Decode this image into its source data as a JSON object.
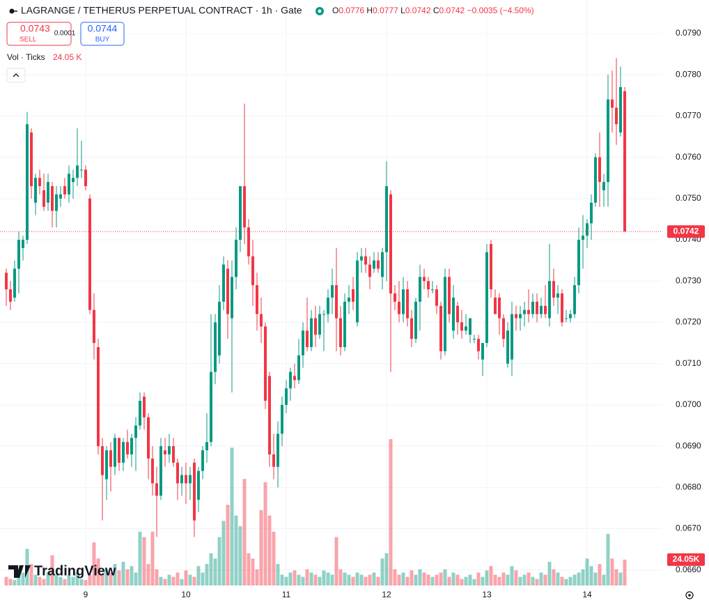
{
  "header": {
    "title": "LAGRANGE / TETHERUS PERPETUAL CONTRACT · 1h · Gate",
    "ohlc_prefixes": [
      "O",
      "H",
      "L",
      "C"
    ],
    "change": "−0.0035 (−4.50%)",
    "sell_price": "0.0743",
    "sell_label": "SELL",
    "spread": "0.0001",
    "buy_price": "0.0744",
    "buy_label": "BUY",
    "volume_indicator": "Vol · Ticks",
    "volume_value": "24.05 K",
    "volume_axis_label": "24.05K",
    "logo": "TradingView"
  },
  "chart_data": {
    "type": "candlestick",
    "up_color": "#089981",
    "down_color": "#f23645",
    "grid": true,
    "categories": [
      null,
      null,
      null,
      null,
      null,
      null,
      null,
      null,
      null,
      null,
      null,
      null,
      null,
      null,
      null,
      null,
      null,
      null,
      null,
      "9",
      null,
      null,
      null,
      null,
      null,
      null,
      null,
      null,
      null,
      null,
      null,
      null,
      null,
      null,
      null,
      null,
      null,
      null,
      null,
      null,
      null,
      null,
      null,
      "10",
      null,
      null,
      null,
      null,
      null,
      null,
      null,
      null,
      null,
      null,
      null,
      null,
      null,
      null,
      null,
      null,
      null,
      null,
      null,
      null,
      null,
      null,
      null,
      "11",
      null,
      null,
      null,
      null,
      null,
      null,
      null,
      null,
      null,
      null,
      null,
      null,
      null,
      null,
      null,
      null,
      null,
      null,
      null,
      null,
      null,
      null,
      null,
      "12",
      null,
      null,
      null,
      null,
      null,
      null,
      null,
      null,
      null,
      null,
      null,
      null,
      null,
      null,
      null,
      null,
      null,
      null,
      null,
      null,
      null,
      null,
      null,
      "13",
      null,
      null,
      null,
      null,
      null,
      null,
      null,
      null,
      null,
      null,
      null,
      null,
      null,
      null,
      null,
      null,
      null,
      null,
      null,
      null,
      null,
      null,
      null,
      "14",
      null,
      null,
      null,
      null,
      null,
      null,
      null,
      null,
      null
    ],
    "open": [
      0.0732,
      0.0728,
      0.0726,
      0.0733,
      0.0738,
      0.074,
      0.0766,
      0.0749,
      0.0755,
      0.0752,
      0.0749,
      0.0753,
      0.0747,
      0.075,
      0.0753,
      0.0751,
      0.0754,
      0.0755,
      0.0757,
      0.0757,
      0.075,
      0.0723,
      0.0714,
      0.069,
      0.0682,
      0.0689,
      0.0685,
      0.0692,
      0.0686,
      0.0691,
      0.0688,
      0.0692,
      0.0695,
      0.0702,
      0.0697,
      0.0687,
      0.0681,
      0.0678,
      0.0689,
      0.0688,
      0.069,
      0.0686,
      0.0681,
      0.0683,
      0.0681,
      0.0686,
      0.0677,
      0.0684,
      0.0689,
      0.0691,
      0.0708,
      0.0712,
      0.0725,
      0.0733,
      0.0721,
      0.0731,
      0.074,
      0.0753,
      0.0743,
      0.0736,
      0.0729,
      0.0722,
      0.0719,
      0.0707,
      0.0688,
      0.0685,
      0.0693,
      0.07,
      0.0704,
      0.0707,
      0.0706,
      0.0712,
      0.0718,
      0.0714,
      0.0721,
      0.0717,
      0.0722,
      0.0722,
      0.0726,
      0.0729,
      0.0721,
      0.0714,
      0.0725,
      0.0728,
      0.072,
      0.0735,
      0.0736,
      0.0734,
      0.0733,
      0.0735,
      0.0731,
      0.0737,
      0.0751,
      0.0727,
      0.0725,
      0.0722,
      0.0728,
      0.0721,
      0.0716,
      0.0725,
      0.0731,
      0.073,
      0.0728,
      0.0728,
      0.0724,
      0.0713,
      0.0731,
      0.0718,
      0.0724,
      0.072,
      0.0718,
      0.0717,
      0.0716,
      0.0716,
      0.0711,
      0.0715,
      0.0739,
      0.0726,
      0.0726,
      0.0721,
      0.071,
      0.0711,
      0.0722,
      0.0721,
      0.0722,
      0.0723,
      0.0722,
      0.0725,
      0.0722,
      0.0724,
      0.0721,
      0.073,
      0.0726,
      0.0727,
      0.0721,
      0.0721,
      0.0722,
      0.0729,
      0.074,
      0.0741,
      0.0744,
      0.0749,
      0.076,
      0.0752,
      0.0754,
      0.0774,
      0.0772,
      0.0766,
      0.0776
    ],
    "high": [
      0.0733,
      0.073,
      0.0735,
      0.0742,
      0.0741,
      0.0771,
      0.0767,
      0.0756,
      0.0757,
      0.0756,
      0.0756,
      0.0754,
      0.0753,
      0.0753,
      0.0755,
      0.0758,
      0.0757,
      0.0767,
      0.0764,
      0.0758,
      0.0751,
      0.0727,
      0.0716,
      0.0692,
      0.069,
      0.0691,
      0.0693,
      0.0692,
      0.0692,
      0.0694,
      0.0693,
      0.0697,
      0.0703,
      0.0703,
      0.0698,
      0.069,
      0.0685,
      0.0692,
      0.0692,
      0.0693,
      0.0692,
      0.0687,
      0.0685,
      0.0686,
      0.0685,
      0.0687,
      0.0685,
      0.069,
      0.0698,
      0.0722,
      0.0722,
      0.0729,
      0.0736,
      0.0735,
      0.0735,
      0.0743,
      0.0753,
      0.0773,
      0.0745,
      0.074,
      0.0732,
      0.0726,
      0.072,
      0.0708,
      0.0693,
      0.0696,
      0.0702,
      0.0706,
      0.0709,
      0.071,
      0.0716,
      0.072,
      0.0726,
      0.0723,
      0.0724,
      0.0724,
      0.0723,
      0.0728,
      0.0733,
      0.0738,
      0.0724,
      0.0727,
      0.0729,
      0.0731,
      0.0737,
      0.0738,
      0.0738,
      0.0736,
      0.0737,
      0.0737,
      0.0738,
      0.0759,
      0.0752,
      0.0729,
      0.073,
      0.0731,
      0.073,
      0.0723,
      0.0726,
      0.0734,
      0.0733,
      0.0731,
      0.073,
      0.0729,
      0.0725,
      0.0733,
      0.0733,
      0.0729,
      0.0725,
      0.0723,
      0.0722,
      0.0721,
      0.0717,
      0.0717,
      0.0715,
      0.0739,
      0.074,
      0.0728,
      0.0727,
      0.0722,
      0.072,
      0.0725,
      0.0724,
      0.0724,
      0.0725,
      0.0728,
      0.0727,
      0.0727,
      0.0726,
      0.0729,
      0.0739,
      0.0733,
      0.0729,
      0.0728,
      0.0723,
      0.0723,
      0.0731,
      0.0743,
      0.0746,
      0.0745,
      0.0751,
      0.0761,
      0.0766,
      0.0756,
      0.078,
      0.0781,
      0.0784,
      0.0782,
      0.0777
    ],
    "low": [
      0.0724,
      0.0723,
      0.0725,
      0.0727,
      0.0735,
      0.0739,
      0.075,
      0.0746,
      0.0751,
      0.0747,
      0.0747,
      0.0743,
      0.0743,
      0.0748,
      0.075,
      0.0749,
      0.075,
      0.0753,
      0.0755,
      0.0752,
      0.0722,
      0.0711,
      0.0688,
      0.0672,
      0.0677,
      0.0679,
      0.0683,
      0.0684,
      0.0684,
      0.0687,
      0.0685,
      0.0684,
      0.0694,
      0.0694,
      0.0682,
      0.0678,
      0.0668,
      0.0677,
      0.0685,
      0.0686,
      0.0685,
      0.0677,
      0.0678,
      0.0676,
      0.0677,
      0.0668,
      0.0674,
      0.0682,
      0.0686,
      0.069,
      0.0705,
      0.071,
      0.0723,
      0.0716,
      0.0703,
      0.0728,
      0.0737,
      0.0739,
      0.0734,
      0.0724,
      0.0718,
      0.0715,
      0.0699,
      0.0685,
      0.0682,
      0.068,
      0.069,
      0.0698,
      0.0701,
      0.0704,
      0.0705,
      0.0709,
      0.0713,
      0.0713,
      0.0714,
      0.0716,
      0.0713,
      0.072,
      0.0722,
      0.0713,
      0.0712,
      0.0713,
      0.0722,
      0.0723,
      0.0719,
      0.0732,
      0.0732,
      0.0728,
      0.0732,
      0.0732,
      0.0728,
      0.073,
      0.0708,
      0.0723,
      0.072,
      0.072,
      0.0719,
      0.0714,
      0.0715,
      0.0718,
      0.0728,
      0.0726,
      0.0727,
      0.0722,
      0.0711,
      0.0712,
      0.072,
      0.0716,
      0.0717,
      0.0716,
      0.0717,
      0.0715,
      0.0715,
      0.0711,
      0.0707,
      0.0714,
      0.0726,
      0.0722,
      0.0717,
      0.0714,
      0.0709,
      0.0707,
      0.0718,
      0.0718,
      0.0719,
      0.072,
      0.0721,
      0.072,
      0.0721,
      0.0721,
      0.0719,
      0.0724,
      0.0722,
      0.0719,
      0.072,
      0.072,
      0.0721,
      0.0727,
      0.0733,
      0.0738,
      0.074,
      0.0748,
      0.0748,
      0.0748,
      0.0748,
      0.0766,
      0.0763,
      0.0765,
      0.0742
    ],
    "close": [
      0.0728,
      0.0725,
      0.0733,
      0.074,
      0.074,
      0.0768,
      0.0753,
      0.0755,
      0.0753,
      0.0748,
      0.0754,
      0.0747,
      0.0751,
      0.0751,
      0.0751,
      0.0756,
      0.0755,
      0.0758,
      0.0757,
      0.0753,
      0.0723,
      0.0715,
      0.069,
      0.0683,
      0.0689,
      0.0685,
      0.0692,
      0.0686,
      0.0691,
      0.0688,
      0.0692,
      0.0695,
      0.0701,
      0.0697,
      0.0687,
      0.0681,
      0.0678,
      0.069,
      0.0688,
      0.069,
      0.0686,
      0.0681,
      0.0683,
      0.0681,
      0.0683,
      0.0672,
      0.0684,
      0.0689,
      0.0691,
      0.0708,
      0.072,
      0.0725,
      0.0734,
      0.0722,
      0.0731,
      0.074,
      0.0753,
      0.0743,
      0.0736,
      0.0729,
      0.0722,
      0.0719,
      0.0701,
      0.0688,
      0.0685,
      0.0693,
      0.07,
      0.0704,
      0.0708,
      0.0706,
      0.0712,
      0.0718,
      0.0714,
      0.0721,
      0.0717,
      0.0722,
      0.0722,
      0.0726,
      0.0729,
      0.0721,
      0.0714,
      0.0725,
      0.0726,
      0.0725,
      0.0735,
      0.0736,
      0.0734,
      0.0731,
      0.0735,
      0.0733,
      0.0737,
      0.0753,
      0.0727,
      0.0725,
      0.0722,
      0.0728,
      0.0721,
      0.0716,
      0.0725,
      0.0731,
      0.073,
      0.0728,
      0.0728,
      0.0724,
      0.0713,
      0.0731,
      0.0722,
      0.0726,
      0.072,
      0.0718,
      0.0719,
      0.0721,
      0.0716,
      0.0713,
      0.0715,
      0.0737,
      0.0728,
      0.0722,
      0.0721,
      0.0716,
      0.0718,
      0.0722,
      0.0721,
      0.0722,
      0.0723,
      0.0722,
      0.0725,
      0.0722,
      0.0724,
      0.0722,
      0.073,
      0.0726,
      0.0727,
      0.072,
      0.0721,
      0.0722,
      0.0729,
      0.074,
      0.0741,
      0.0744,
      0.0749,
      0.076,
      0.0754,
      0.0754,
      0.0774,
      0.0772,
      0.0768,
      0.0777,
      0.0742
    ],
    "volume": [
      8000,
      6000,
      5000,
      10000,
      12000,
      34000,
      20000,
      10000,
      8000,
      6000,
      12000,
      28000,
      10000,
      8000,
      6000,
      10000,
      8000,
      12000,
      6000,
      5000,
      10000,
      40000,
      25000,
      10000,
      15000,
      12000,
      20000,
      14000,
      22000,
      15000,
      18000,
      12000,
      50000,
      45000,
      20000,
      50000,
      15000,
      8000,
      6000,
      10000,
      8000,
      12000,
      6000,
      14000,
      10000,
      8000,
      18000,
      12000,
      20000,
      30000,
      25000,
      45000,
      60000,
      75000,
      128000,
      65000,
      55000,
      99000,
      30000,
      25000,
      15000,
      70000,
      96000,
      65000,
      50000,
      20000,
      10000,
      8000,
      12000,
      14000,
      10000,
      8000,
      15000,
      12000,
      10000,
      8000,
      14000,
      12000,
      10000,
      45000,
      15000,
      12000,
      10000,
      8000,
      12000,
      10000,
      8000,
      10000,
      12000,
      8000,
      25000,
      30000,
      136000,
      15000,
      10000,
      12000,
      8000,
      14000,
      10000,
      15000,
      12000,
      10000,
      8000,
      10000,
      12000,
      15000,
      8000,
      12000,
      10000,
      6000,
      8000,
      10000,
      6000,
      12000,
      8000,
      14000,
      18000,
      10000,
      8000,
      12000,
      10000,
      18000,
      14000,
      8000,
      10000,
      12000,
      8000,
      6000,
      12000,
      10000,
      22000,
      15000,
      12000,
      8000,
      6000,
      8000,
      10000,
      12000,
      15000,
      25000,
      18000,
      12000,
      20000,
      10000,
      48000,
      25000,
      15000,
      12000,
      24050
    ],
    "ylim": [
      0.06554,
      0.07981
    ],
    "yticks": [
      {
        "value": 0.066,
        "label": "0.0660"
      },
      {
        "value": 0.067,
        "label": "0.0670"
      },
      {
        "value": 0.068,
        "label": "0.0680"
      },
      {
        "value": 0.069,
        "label": "0.0690"
      },
      {
        "value": 0.07,
        "label": "0.0700"
      },
      {
        "value": 0.071,
        "label": "0.0710"
      },
      {
        "value": 0.072,
        "label": "0.0720"
      },
      {
        "value": 0.073,
        "label": "0.0730"
      },
      {
        "value": 0.074,
        "label": "0.0740"
      },
      {
        "value": 0.075,
        "label": "0.0750"
      },
      {
        "value": 0.076,
        "label": "0.0760"
      },
      {
        "value": 0.077,
        "label": "0.0770"
      },
      {
        "value": 0.078,
        "label": "0.0780"
      },
      {
        "value": 0.079,
        "label": "0.0790"
      }
    ]
  }
}
